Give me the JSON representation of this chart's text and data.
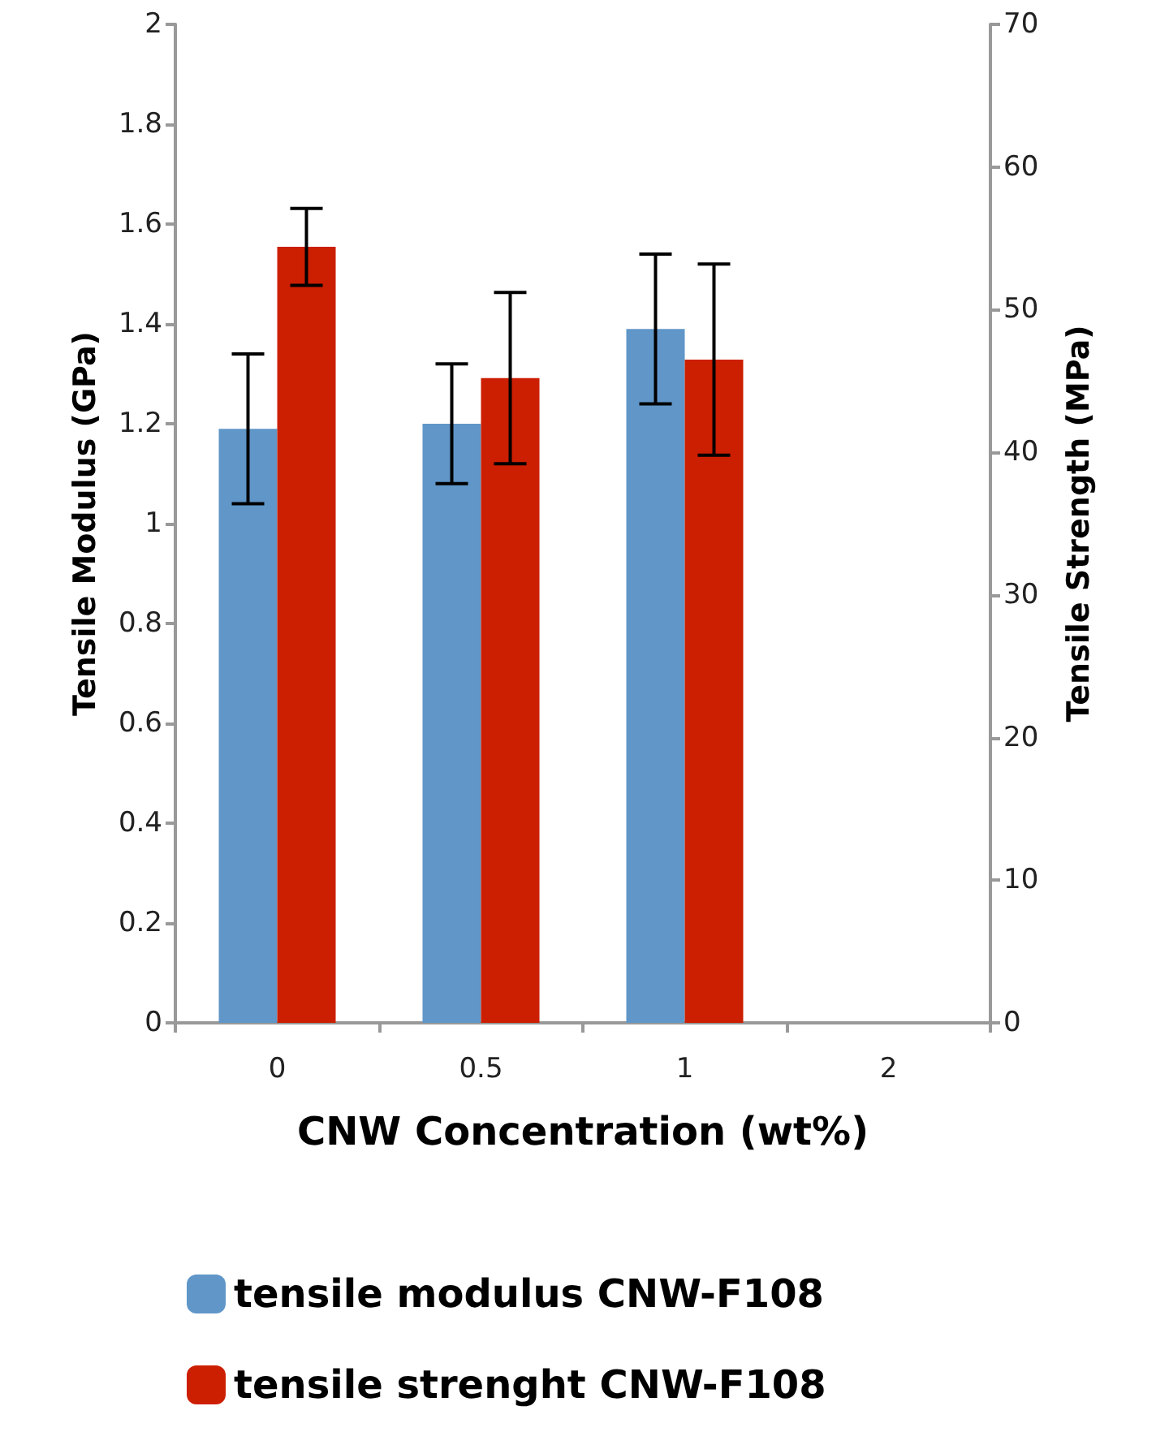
{
  "chart_data": {
    "type": "bar",
    "xlabel": "CNW Concentration (wt%)",
    "ylabel": "Tensile Modulus (GPa)",
    "y2label": "Tensile Strength (MPa)",
    "categories": [
      "0",
      "0.5",
      "1",
      "2"
    ],
    "series": [
      {
        "name": "tensile modulus CNW-F108",
        "color": "#6096c8",
        "values": [
          1.19,
          1.2,
          1.39,
          null
        ],
        "errors": [
          0.15,
          0.12,
          0.15,
          null
        ]
      },
      {
        "name": "tensile strenght CNW-F108",
        "color": "#cc1e00",
        "axis": "y2",
        "values": [
          54.4,
          45.2,
          46.5,
          null
        ],
        "errors": [
          2.7,
          6,
          6.7,
          null
        ]
      }
    ],
    "ylim": [
      0,
      2
    ],
    "yticks": [
      0,
      0.2,
      0.4,
      0.6,
      0.8,
      1,
      1.2,
      1.4,
      1.6,
      1.8,
      2
    ],
    "y2lim": [
      0,
      70
    ],
    "y2ticks": [
      0,
      10,
      20,
      30,
      40,
      50,
      60,
      70
    ],
    "grid": false,
    "legend": "bottom"
  }
}
